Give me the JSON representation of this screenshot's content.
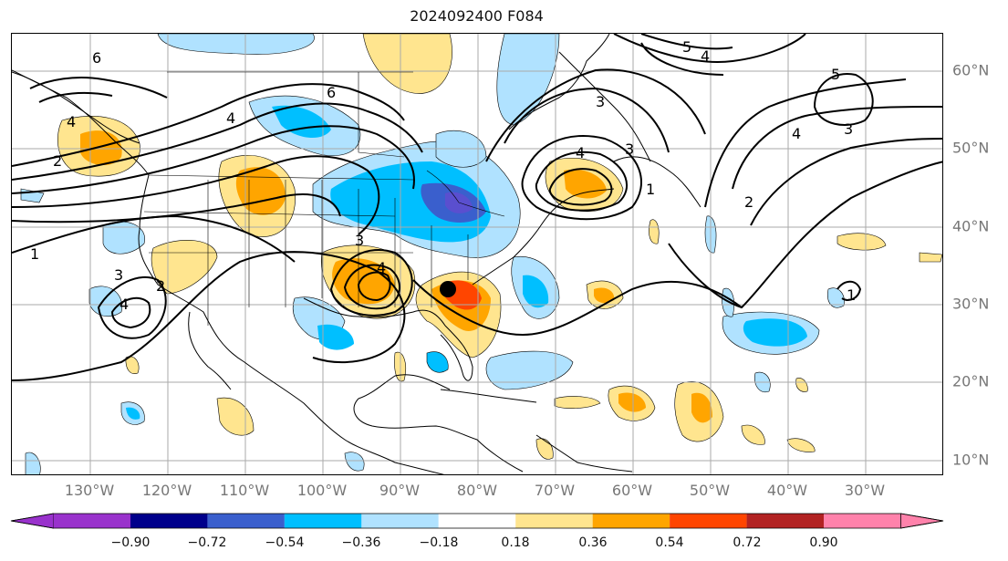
{
  "title": "2024092400 F084",
  "lon_labels": [
    "130°W",
    "120°W",
    "110°W",
    "100°W",
    "90°W",
    "80°W",
    "70°W",
    "60°W",
    "50°W",
    "40°W",
    "30°W"
  ],
  "lat_labels": [
    "60°N",
    "50°N",
    "40°N",
    "30°N",
    "20°N",
    "10°N"
  ],
  "colorbar": {
    "ticks": [
      "−0.90",
      "−0.72",
      "−0.54",
      "−0.36",
      "−0.18",
      "0.18",
      "0.36",
      "0.54",
      "0.72",
      "0.90"
    ],
    "colors": [
      "#9932cc",
      "#00008b",
      "#3a5fcd",
      "#00bfff",
      "#b0e2ff",
      "#ffffff",
      "#ffe58f",
      "#ffa500",
      "#ff4500",
      "#b22222",
      "#ff82ab"
    ]
  },
  "contour_labels": [
    "6",
    "6",
    "4",
    "4",
    "2",
    "1",
    "3",
    "4",
    "2",
    "3",
    "3",
    "5",
    "4",
    "5",
    "4",
    "3",
    "4",
    "2",
    "3",
    "4",
    "1",
    "1"
  ],
  "storm_marker": {
    "lon": -84.0,
    "lat": 32.0
  },
  "map": {
    "lon_range": [
      -138,
      -18
    ],
    "lat_range": [
      8,
      65
    ]
  }
}
